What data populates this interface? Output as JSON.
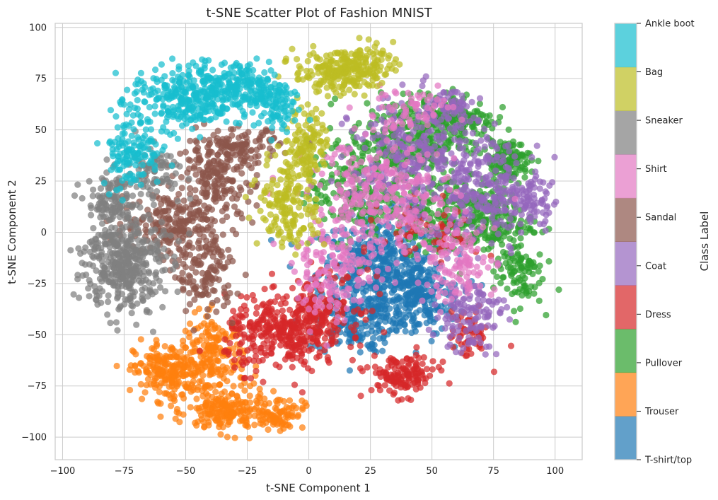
{
  "chart_data": {
    "type": "scatter",
    "title": "t-SNE Scatter Plot of Fashion MNIST",
    "xlabel": "t-SNE Component 1",
    "ylabel": "t-SNE Component 2",
    "xlim": [
      -103,
      111
    ],
    "ylim": [
      -111,
      102
    ],
    "xticks": [
      -100,
      -75,
      -50,
      -25,
      0,
      25,
      50,
      75,
      100
    ],
    "yticks": [
      -100,
      -75,
      -50,
      -25,
      0,
      25,
      50,
      75,
      100
    ],
    "grid": true,
    "colorbar": {
      "label": "Class Label",
      "placement": "right",
      "entries": [
        {
          "label": "T-shirt/top",
          "color": "#1f77b4"
        },
        {
          "label": "Trouser",
          "color": "#ff7f0e"
        },
        {
          "label": "Pullover",
          "color": "#2ca02c"
        },
        {
          "label": "Dress",
          "color": "#d62728"
        },
        {
          "label": "Coat",
          "color": "#9467bd"
        },
        {
          "label": "Sandal",
          "color": "#8c564b"
        },
        {
          "label": "Shirt",
          "color": "#e377c2"
        },
        {
          "label": "Sneaker",
          "color": "#7f7f7f"
        },
        {
          "label": "Bag",
          "color": "#bcbd22"
        },
        {
          "label": "Ankle boot",
          "color": "#17becf"
        }
      ]
    },
    "series": [
      {
        "name": "T-shirt/top",
        "color": "#1f77b4",
        "clusters": [
          {
            "cx": 30,
            "cy": -20,
            "sx": 13,
            "sy": 14,
            "n": 520
          },
          {
            "cx": 45,
            "cy": -33,
            "sx": 8,
            "sy": 9,
            "n": 160
          },
          {
            "cx": 18,
            "cy": -45,
            "sx": 8,
            "sy": 7,
            "n": 120
          }
        ]
      },
      {
        "name": "Trouser",
        "color": "#ff7f0e",
        "clusters": [
          {
            "cx": -57,
            "cy": -68,
            "sx": 7,
            "sy": 7,
            "n": 220
          },
          {
            "cx": -38,
            "cy": -62,
            "sx": 6,
            "sy": 11,
            "n": 190
          },
          {
            "cx": -33,
            "cy": -88,
            "sx": 8,
            "sy": 5,
            "n": 170
          },
          {
            "cx": -12,
            "cy": -88,
            "sx": 5,
            "sy": 4,
            "n": 80
          }
        ]
      },
      {
        "name": "Pullover",
        "color": "#2ca02c",
        "clusters": [
          {
            "cx": 40,
            "cy": 45,
            "sx": 12,
            "sy": 11,
            "n": 280
          },
          {
            "cx": 62,
            "cy": 55,
            "sx": 7,
            "sy": 6,
            "n": 140
          },
          {
            "cx": 80,
            "cy": 35,
            "sx": 5,
            "sy": 5,
            "n": 120
          },
          {
            "cx": 75,
            "cy": 5,
            "sx": 8,
            "sy": 8,
            "n": 160
          },
          {
            "cx": 85,
            "cy": -20,
            "sx": 5,
            "sy": 8,
            "n": 90
          },
          {
            "cx": 20,
            "cy": 20,
            "sx": 10,
            "sy": 12,
            "n": 200
          },
          {
            "cx": 55,
            "cy": 10,
            "sx": 10,
            "sy": 10,
            "n": 180
          }
        ]
      },
      {
        "name": "Dress",
        "color": "#d62728",
        "clusters": [
          {
            "cx": -10,
            "cy": -50,
            "sx": 12,
            "sy": 9,
            "n": 340
          },
          {
            "cx": 5,
            "cy": -35,
            "sx": 8,
            "sy": 8,
            "n": 130
          },
          {
            "cx": 38,
            "cy": -70,
            "sx": 7,
            "sy": 5,
            "n": 140
          },
          {
            "cx": 65,
            "cy": -50,
            "sx": 4,
            "sy": 6,
            "n": 60
          },
          {
            "cx": 50,
            "cy": 0,
            "sx": 10,
            "sy": 8,
            "n": 60
          }
        ]
      },
      {
        "name": "Coat",
        "color": "#9467bd",
        "clusters": [
          {
            "cx": 45,
            "cy": 35,
            "sx": 14,
            "sy": 15,
            "n": 320
          },
          {
            "cx": 75,
            "cy": 20,
            "sx": 10,
            "sy": 12,
            "n": 200
          },
          {
            "cx": 90,
            "cy": 15,
            "sx": 5,
            "sy": 5,
            "n": 60
          },
          {
            "cx": 65,
            "cy": -40,
            "sx": 7,
            "sy": 9,
            "n": 120
          },
          {
            "cx": 55,
            "cy": 60,
            "sx": 6,
            "sy": 4,
            "n": 60
          }
        ]
      },
      {
        "name": "Sandal",
        "color": "#8c564b",
        "clusters": [
          {
            "cx": -38,
            "cy": 25,
            "sx": 8,
            "sy": 10,
            "n": 200
          },
          {
            "cx": -55,
            "cy": 5,
            "sx": 10,
            "sy": 8,
            "n": 190
          },
          {
            "cx": -42,
            "cy": -20,
            "sx": 6,
            "sy": 10,
            "n": 140
          },
          {
            "cx": -28,
            "cy": 42,
            "sx": 8,
            "sy": 4,
            "n": 100
          }
        ]
      },
      {
        "name": "Shirt",
        "color": "#e377c2",
        "clusters": [
          {
            "cx": 30,
            "cy": 15,
            "sx": 15,
            "sy": 15,
            "n": 320
          },
          {
            "cx": 10,
            "cy": -20,
            "sx": 8,
            "sy": 12,
            "n": 140
          },
          {
            "cx": 60,
            "cy": -15,
            "sx": 8,
            "sy": 10,
            "n": 120
          },
          {
            "cx": 40,
            "cy": 60,
            "sx": 10,
            "sy": 5,
            "n": 60
          }
        ]
      },
      {
        "name": "Sneaker",
        "color": "#7f7f7f",
        "clusters": [
          {
            "cx": -75,
            "cy": -15,
            "sx": 8,
            "sy": 12,
            "n": 400
          },
          {
            "cx": -80,
            "cy": 15,
            "sx": 5,
            "sy": 8,
            "n": 120
          },
          {
            "cx": -62,
            "cy": 30,
            "sx": 6,
            "sy": 6,
            "n": 80
          }
        ]
      },
      {
        "name": "Bag",
        "color": "#bcbd22",
        "clusters": [
          {
            "cx": 10,
            "cy": 78,
            "sx": 8,
            "sy": 5,
            "n": 170
          },
          {
            "cx": 22,
            "cy": 82,
            "sx": 6,
            "sy": 5,
            "n": 100
          },
          {
            "cx": 0,
            "cy": 45,
            "sx": 4,
            "sy": 9,
            "n": 110
          },
          {
            "cx": -8,
            "cy": 15,
            "sx": 6,
            "sy": 12,
            "n": 180
          }
        ]
      },
      {
        "name": "Ankle boot",
        "color": "#17becf",
        "clusters": [
          {
            "cx": -50,
            "cy": 65,
            "sx": 11,
            "sy": 8,
            "n": 300
          },
          {
            "cx": -25,
            "cy": 70,
            "sx": 9,
            "sy": 7,
            "n": 210
          },
          {
            "cx": -72,
            "cy": 40,
            "sx": 6,
            "sy": 9,
            "n": 130
          },
          {
            "cx": -12,
            "cy": 60,
            "sx": 3,
            "sy": 5,
            "n": 50
          }
        ]
      }
    ]
  }
}
